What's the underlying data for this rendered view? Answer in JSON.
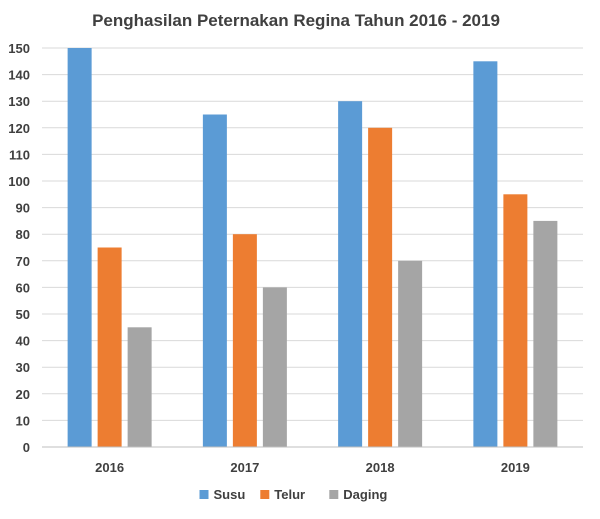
{
  "chart_data": {
    "type": "bar",
    "title": "Penghasilan Peternakan Regina Tahun 2016 - 2019",
    "categories": [
      "2016",
      "2017",
      "2018",
      "2019"
    ],
    "series": [
      {
        "name": "Susu",
        "values": [
          150,
          125,
          130,
          145
        ],
        "color": "#5b9bd5"
      },
      {
        "name": "Telur",
        "values": [
          75,
          80,
          120,
          95
        ],
        "color": "#ed7d31"
      },
      {
        "name": "Daging",
        "values": [
          45,
          60,
          70,
          85
        ],
        "color": "#a5a5a5"
      }
    ],
    "ylim": [
      0,
      150
    ],
    "yticks": [
      0,
      10,
      20,
      30,
      40,
      50,
      60,
      70,
      80,
      90,
      100,
      110,
      120,
      130,
      140,
      150
    ],
    "grid": true,
    "legend_position": "bottom"
  }
}
